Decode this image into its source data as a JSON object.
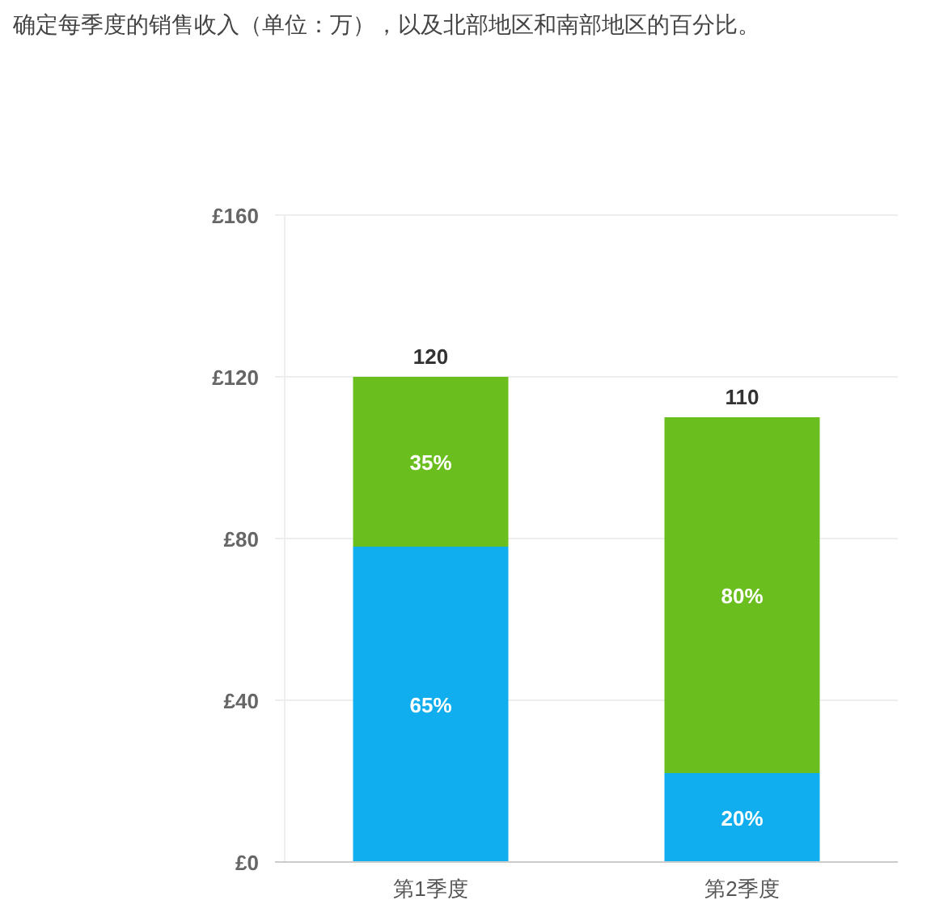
{
  "chart_data": {
    "type": "bar",
    "title": "确定每季度的销售收入（单位：万），以及北部地区和南部地区的百分比。",
    "categories": [
      "第1季度",
      "第2季度"
    ],
    "stacked": true,
    "series": [
      {
        "color": "#10aeef",
        "values": [
          78,
          22
        ]
      },
      {
        "color": "#6abf1f",
        "values": [
          42,
          88
        ]
      }
    ],
    "annotations": [
      "65%",
      "20%",
      "35%",
      "80%"
    ],
    "totals": [
      "120",
      "110"
    ],
    "ylim": [
      0,
      160
    ],
    "yticks": [
      {
        "value": 0,
        "label": "£0"
      },
      {
        "value": 40,
        "label": "£40"
      },
      {
        "value": 80,
        "label": "£80"
      },
      {
        "value": 120,
        "label": "£120"
      },
      {
        "value": 160,
        "label": "£160"
      }
    ],
    "grid": "y"
  }
}
